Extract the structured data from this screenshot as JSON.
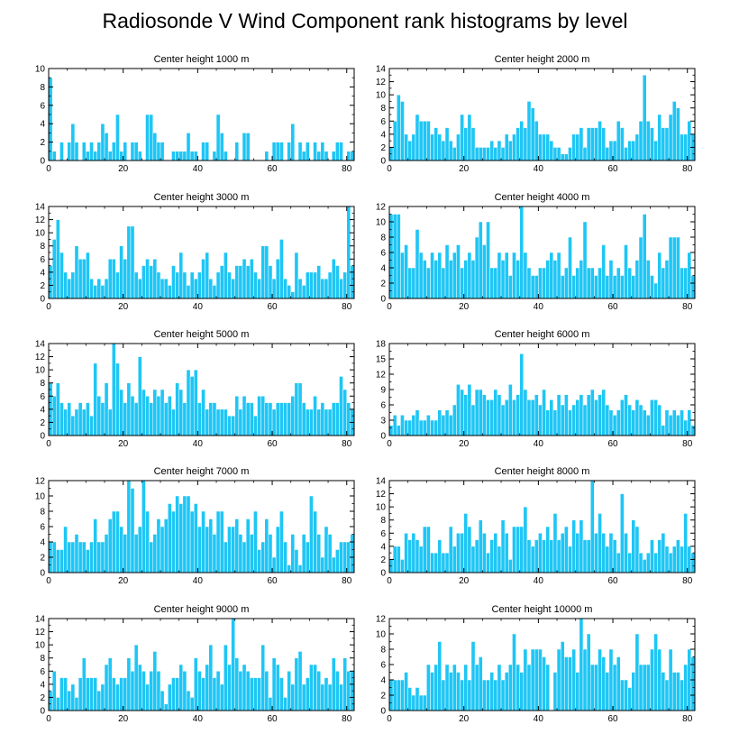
{
  "figure": {
    "title": "Radiosonde V Wind Component rank histograms by level"
  },
  "style": {
    "bar_color": "#1ec6f5",
    "bar_edge": "#ffffff",
    "axis_color": "#000000"
  },
  "chart_data": [
    {
      "type": "bar",
      "title": "Center height 1000 m",
      "xlim": [
        0,
        82
      ],
      "ylim": [
        0,
        10
      ],
      "xticks": [
        0,
        20,
        40,
        60,
        80
      ],
      "yticks": [
        0,
        2,
        4,
        6,
        8,
        10
      ],
      "values": [
        9,
        1,
        0,
        2,
        0,
        2,
        4,
        2,
        0,
        2,
        1,
        2,
        1,
        2,
        4,
        3,
        1,
        2,
        5,
        1,
        2,
        0,
        2,
        2,
        1,
        0,
        5,
        5,
        3,
        2,
        2,
        0,
        0,
        1,
        1,
        1,
        1,
        3,
        1,
        1,
        0,
        2,
        2,
        0,
        1,
        5,
        3,
        1,
        0,
        0,
        2,
        0,
        3,
        3,
        0,
        0,
        0,
        0,
        1,
        0,
        2,
        2,
        2,
        0,
        2,
        4,
        0,
        2,
        1,
        2,
        0,
        2,
        1,
        2,
        1,
        0,
        1,
        2,
        2,
        0,
        1,
        1
      ]
    },
    {
      "type": "bar",
      "title": "Center height 2000 m",
      "xlim": [
        0,
        82
      ],
      "ylim": [
        0,
        14
      ],
      "xticks": [
        0,
        20,
        40,
        60,
        80
      ],
      "yticks": [
        0,
        2,
        4,
        6,
        8,
        10,
        12,
        14
      ],
      "values": [
        2,
        6,
        10,
        9,
        4,
        3,
        4,
        7,
        6,
        6,
        6,
        4,
        5,
        4,
        3,
        5,
        3,
        2,
        4,
        7,
        5,
        7,
        5,
        2,
        2,
        2,
        2,
        3,
        2,
        3,
        2,
        4,
        3,
        4,
        5,
        6,
        5,
        9,
        8,
        6,
        4,
        4,
        4,
        3,
        2,
        2,
        1,
        1,
        2,
        4,
        4,
        5,
        2,
        5,
        5,
        5,
        6,
        5,
        2,
        3,
        3,
        6,
        5,
        2,
        3,
        3,
        4,
        6,
        13,
        6,
        5,
        3,
        7,
        5,
        5,
        7,
        9,
        8,
        4,
        4,
        6,
        4
      ]
    },
    {
      "type": "bar",
      "title": "Center height 3000 m",
      "xlim": [
        0,
        82
      ],
      "ylim": [
        0,
        14
      ],
      "xticks": [
        0,
        20,
        40,
        60,
        80
      ],
      "yticks": [
        0,
        2,
        4,
        6,
        8,
        10,
        12,
        14
      ],
      "values": [
        5,
        9,
        12,
        7,
        4,
        3,
        4,
        8,
        6,
        6,
        7,
        3,
        2,
        3,
        2,
        3,
        6,
        6,
        4,
        8,
        6,
        11,
        11,
        4,
        3,
        5,
        6,
        5,
        6,
        4,
        3,
        3,
        2,
        5,
        4,
        7,
        4,
        2,
        4,
        3,
        4,
        6,
        7,
        3,
        2,
        4,
        5,
        7,
        4,
        3,
        5,
        5,
        6,
        5,
        6,
        4,
        3,
        8,
        8,
        5,
        3,
        6,
        9,
        3,
        2,
        1,
        7,
        3,
        2,
        4,
        4,
        4,
        5,
        3,
        3,
        4,
        6,
        5,
        3,
        4,
        14,
        5
      ]
    },
    {
      "type": "bar",
      "title": "Center height 4000 m",
      "xlim": [
        0,
        82
      ],
      "ylim": [
        0,
        12
      ],
      "xticks": [
        0,
        20,
        40,
        60,
        80
      ],
      "yticks": [
        0,
        2,
        4,
        6,
        8,
        10,
        12
      ],
      "values": [
        11,
        11,
        11,
        6,
        7,
        4,
        4,
        9,
        6,
        5,
        4,
        6,
        5,
        6,
        4,
        7,
        5,
        6,
        7,
        4,
        5,
        6,
        5,
        8,
        10,
        7,
        10,
        4,
        4,
        6,
        5,
        6,
        3,
        6,
        5,
        12,
        6,
        4,
        3,
        3,
        4,
        4,
        5,
        6,
        5,
        6,
        3,
        4,
        8,
        3,
        4,
        5,
        10,
        4,
        4,
        3,
        4,
        7,
        3,
        5,
        3,
        4,
        3,
        7,
        4,
        3,
        5,
        8,
        11,
        5,
        3,
        2,
        6,
        4,
        5,
        8,
        8,
        8,
        4,
        4,
        6,
        3
      ]
    },
    {
      "type": "bar",
      "title": "Center height 5000 m",
      "xlim": [
        0,
        82
      ],
      "ylim": [
        0,
        14
      ],
      "xticks": [
        0,
        20,
        40,
        60,
        80
      ],
      "yticks": [
        0,
        2,
        4,
        6,
        8,
        10,
        12,
        14
      ],
      "values": [
        8,
        6,
        8,
        5,
        4,
        5,
        3,
        4,
        5,
        4,
        5,
        3,
        11,
        6,
        5,
        8,
        4,
        14,
        11,
        7,
        5,
        8,
        6,
        5,
        12,
        7,
        6,
        5,
        7,
        6,
        7,
        5,
        6,
        4,
        8,
        7,
        5,
        10,
        9,
        10,
        5,
        7,
        4,
        5,
        5,
        4,
        4,
        4,
        3,
        3,
        6,
        4,
        6,
        5,
        5,
        3,
        6,
        6,
        5,
        5,
        4,
        5,
        5,
        5,
        5,
        6,
        8,
        8,
        5,
        4,
        4,
        6,
        4,
        5,
        4,
        4,
        5,
        5,
        9,
        7,
        5,
        4
      ]
    },
    {
      "type": "bar",
      "title": "Center height 6000 m",
      "xlim": [
        0,
        82
      ],
      "ylim": [
        0,
        18
      ],
      "xticks": [
        0,
        20,
        40,
        60,
        80
      ],
      "yticks": [
        0,
        3,
        6,
        9,
        12,
        15,
        18
      ],
      "values": [
        2,
        4,
        2,
        4,
        3,
        3,
        4,
        5,
        3,
        3,
        4,
        3,
        3,
        5,
        4,
        5,
        4,
        6,
        10,
        9,
        8,
        10,
        6,
        9,
        9,
        8,
        7,
        7,
        9,
        8,
        6,
        7,
        10,
        7,
        8,
        16,
        9,
        7,
        7,
        8,
        6,
        9,
        5,
        7,
        5,
        8,
        6,
        8,
        5,
        6,
        7,
        8,
        6,
        8,
        9,
        7,
        8,
        9,
        6,
        5,
        4,
        5,
        7,
        8,
        6,
        5,
        7,
        6,
        5,
        4,
        7,
        7,
        6,
        2,
        5,
        4,
        5,
        4,
        5,
        3,
        5,
        2
      ]
    },
    {
      "type": "bar",
      "title": "Center height 7000 m",
      "xlim": [
        0,
        82
      ],
      "ylim": [
        0,
        12
      ],
      "xticks": [
        0,
        20,
        40,
        60,
        80
      ],
      "yticks": [
        0,
        2,
        4,
        6,
        8,
        10,
        12
      ],
      "values": [
        4,
        4,
        3,
        3,
        6,
        4,
        4,
        5,
        4,
        4,
        3,
        4,
        7,
        4,
        4,
        5,
        7,
        8,
        8,
        6,
        5,
        12,
        11,
        5,
        6,
        12,
        8,
        4,
        5,
        7,
        6,
        7,
        9,
        8,
        10,
        9,
        10,
        10,
        8,
        9,
        6,
        8,
        6,
        7,
        5,
        8,
        8,
        4,
        6,
        6,
        7,
        5,
        4,
        7,
        5,
        8,
        3,
        4,
        7,
        5,
        2,
        6,
        8,
        4,
        1,
        5,
        3,
        1,
        5,
        4,
        10,
        8,
        5,
        2,
        6,
        5,
        2,
        3,
        4,
        4,
        4,
        5
      ]
    },
    {
      "type": "bar",
      "title": "Center height 8000 m",
      "xlim": [
        0,
        82
      ],
      "ylim": [
        0,
        14
      ],
      "xticks": [
        0,
        20,
        40,
        60,
        80
      ],
      "yticks": [
        0,
        2,
        4,
        6,
        8,
        10,
        12,
        14
      ],
      "values": [
        2,
        4,
        4,
        2,
        6,
        5,
        6,
        5,
        4,
        7,
        7,
        3,
        3,
        5,
        3,
        3,
        7,
        4,
        6,
        6,
        9,
        7,
        4,
        5,
        8,
        6,
        3,
        5,
        6,
        4,
        8,
        6,
        2,
        7,
        7,
        7,
        10,
        5,
        4,
        5,
        6,
        5,
        7,
        5,
        9,
        5,
        6,
        7,
        4,
        8,
        6,
        8,
        5,
        5,
        14,
        6,
        9,
        6,
        4,
        6,
        5,
        3,
        12,
        6,
        3,
        8,
        7,
        3,
        2,
        3,
        5,
        3,
        5,
        6,
        4,
        3,
        4,
        5,
        4,
        9,
        4,
        3
      ]
    },
    {
      "type": "bar",
      "title": "Center height 9000 m",
      "xlim": [
        0,
        82
      ],
      "ylim": [
        0,
        14
      ],
      "xticks": [
        0,
        20,
        40,
        60,
        80
      ],
      "yticks": [
        0,
        2,
        4,
        6,
        8,
        10,
        12,
        14
      ],
      "values": [
        3,
        6,
        2,
        5,
        5,
        3,
        4,
        2,
        5,
        8,
        5,
        5,
        5,
        3,
        4,
        7,
        8,
        5,
        4,
        5,
        5,
        8,
        6,
        10,
        7,
        6,
        4,
        6,
        9,
        6,
        3,
        1,
        4,
        5,
        5,
        7,
        6,
        3,
        2,
        8,
        6,
        5,
        7,
        10,
        5,
        6,
        4,
        10,
        7,
        14,
        8,
        6,
        7,
        6,
        5,
        5,
        5,
        10,
        6,
        2,
        8,
        7,
        5,
        2,
        6,
        4,
        8,
        9,
        4,
        5,
        7,
        7,
        6,
        4,
        5,
        4,
        8,
        6,
        4,
        8,
        6,
        6
      ]
    },
    {
      "type": "bar",
      "title": "Center height 10000 m",
      "xlim": [
        0,
        82
      ],
      "ylim": [
        0,
        12
      ],
      "xticks": [
        0,
        20,
        40,
        60,
        80
      ],
      "yticks": [
        0,
        2,
        4,
        6,
        8,
        10,
        12
      ],
      "values": [
        4,
        4,
        4,
        4,
        5,
        3,
        2,
        3,
        2,
        2,
        6,
        5,
        6,
        9,
        4,
        6,
        5,
        6,
        5,
        4,
        6,
        4,
        9,
        6,
        7,
        4,
        4,
        5,
        4,
        6,
        4,
        5,
        6,
        10,
        6,
        5,
        8,
        6,
        8,
        8,
        8,
        7,
        6,
        0,
        5,
        8,
        9,
        7,
        7,
        8,
        5,
        12,
        8,
        10,
        6,
        6,
        8,
        7,
        5,
        8,
        6,
        7,
        4,
        4,
        3,
        5,
        10,
        6,
        6,
        6,
        8,
        10,
        8,
        5,
        4,
        8,
        5,
        5,
        4,
        6,
        8,
        7
      ]
    }
  ]
}
